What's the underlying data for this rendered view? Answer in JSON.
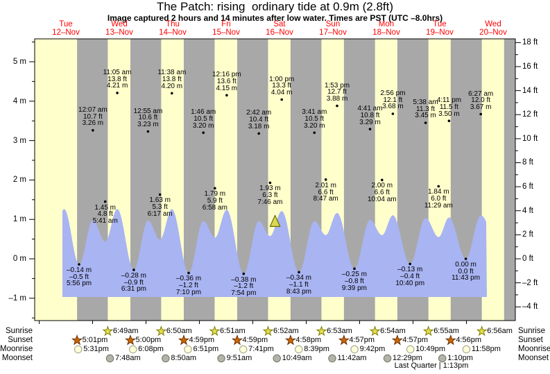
{
  "title": "The Patch: rising  ordinary tide at 0.9m (2.8ft)",
  "subtitle": "Image captured 2 hours and 14 minutes after low water. Times are PST (UTC –8.0hrs)",
  "days": [
    {
      "name": "Tue",
      "date": "12–Nov"
    },
    {
      "name": "Wed",
      "date": "13–Nov"
    },
    {
      "name": "Thu",
      "date": "14–Nov"
    },
    {
      "name": "Fri",
      "date": "15–Nov"
    },
    {
      "name": "Sat",
      "date": "16–Nov"
    },
    {
      "name": "Sun",
      "date": "17–Nov"
    },
    {
      "name": "Mon",
      "date": "18–Nov"
    },
    {
      "name": "Tue",
      "date": "19–Nov"
    },
    {
      "name": "Wed",
      "date": "20–Nov"
    }
  ],
  "y_axis_left": {
    "unit": "m",
    "ticks": [
      5,
      4,
      3,
      2,
      1,
      0,
      -1
    ]
  },
  "y_axis_right": {
    "unit": "ft",
    "ticks": [
      18,
      16,
      14,
      12,
      10,
      8,
      6,
      4,
      2,
      0,
      -2,
      -4
    ]
  },
  "chart_data": {
    "type": "area",
    "title": "The Patch: rising  ordinary tide at 0.9m (2.8ft)",
    "ylabel_left": "meters",
    "ylabel_right": "feet",
    "ylim_m": [
      -1.6,
      5.6
    ],
    "x_range": "Tue 12–Nov through Wed 20–Nov (PST)",
    "legend": "yellow = daytime, gray = nighttime, blue = tide curve",
    "tide_events": [
      {
        "day": "Tue 12–Nov",
        "d": 0,
        "kind": "low",
        "time": "5:56 pm",
        "height_m": -0.14,
        "height_ft": -0.5
      },
      {
        "day": "Wed 13–Nov",
        "d": 1,
        "kind": "high",
        "time": "12:07 am",
        "height_m": 3.26,
        "height_ft": 10.7
      },
      {
        "day": "Wed 13–Nov",
        "d": 1,
        "kind": "low",
        "time": "5:41 am",
        "height_m": 1.45,
        "height_ft": 4.8
      },
      {
        "day": "Wed 13–Nov",
        "d": 1,
        "kind": "high",
        "time": "11:05 am",
        "height_m": 4.21,
        "height_ft": 13.8
      },
      {
        "day": "Wed 13–Nov",
        "d": 1,
        "kind": "low",
        "time": "6:31 pm",
        "height_m": -0.28,
        "height_ft": -0.9
      },
      {
        "day": "Thu 14–Nov",
        "d": 2,
        "kind": "high",
        "time": "12:55 am",
        "height_m": 3.23,
        "height_ft": 10.6
      },
      {
        "day": "Thu 14–Nov",
        "d": 2,
        "kind": "low",
        "time": "6:17 am",
        "height_m": 1.63,
        "height_ft": 5.3
      },
      {
        "day": "Thu 14–Nov",
        "d": 2,
        "kind": "high",
        "time": "11:38 am",
        "height_m": 4.2,
        "height_ft": 13.8
      },
      {
        "day": "Thu 14–Nov",
        "d": 2,
        "kind": "low",
        "time": "7:10 pm",
        "height_m": -0.36,
        "height_ft": -1.2
      },
      {
        "day": "Fri 15–Nov",
        "d": 3,
        "kind": "high",
        "time": "1:46 am",
        "height_m": 3.2,
        "height_ft": 10.5
      },
      {
        "day": "Fri 15–Nov",
        "d": 3,
        "kind": "low",
        "time": "6:58 am",
        "height_m": 1.79,
        "height_ft": 5.9
      },
      {
        "day": "Fri 15–Nov",
        "d": 3,
        "kind": "high",
        "time": "12:16 pm",
        "height_m": 4.15,
        "height_ft": 13.6
      },
      {
        "day": "Fri 15–Nov",
        "d": 3,
        "kind": "low",
        "time": "7:54 pm",
        "height_m": -0.38,
        "height_ft": -1.2
      },
      {
        "day": "Sat 16–Nov",
        "d": 4,
        "kind": "high",
        "time": "2:42 am",
        "height_m": 3.18,
        "height_ft": 10.4
      },
      {
        "day": "Sat 16–Nov",
        "d": 4,
        "kind": "low",
        "time": "7:46 am",
        "height_m": 1.93,
        "height_ft": 6.3
      },
      {
        "day": "Sat 16–Nov",
        "d": 4,
        "kind": "high",
        "time": "1:00 pm",
        "height_m": 4.04,
        "height_ft": 13.3
      },
      {
        "day": "Sat 16–Nov",
        "d": 4,
        "kind": "low",
        "time": "8:43 pm",
        "height_m": -0.34,
        "height_ft": -1.1
      },
      {
        "day": "Sun 17–Nov",
        "d": 5,
        "kind": "high",
        "time": "3:41 am",
        "height_m": 3.2,
        "height_ft": 10.5
      },
      {
        "day": "Sun 17–Nov",
        "d": 5,
        "kind": "low",
        "time": "8:47 am",
        "height_m": 2.01,
        "height_ft": 6.6
      },
      {
        "day": "Sun 17–Nov",
        "d": 5,
        "kind": "high",
        "time": "1:53 pm",
        "height_m": 3.88,
        "height_ft": 12.7
      },
      {
        "day": "Sun 17–Nov",
        "d": 5,
        "kind": "low",
        "time": "9:39 pm",
        "height_m": -0.25,
        "height_ft": -0.8
      },
      {
        "day": "Mon 18–Nov",
        "d": 6,
        "kind": "high",
        "time": "4:41 am",
        "height_m": 3.29,
        "height_ft": 10.8
      },
      {
        "day": "Mon 18–Nov",
        "d": 6,
        "kind": "low",
        "time": "10:04 am",
        "height_m": 2.0,
        "height_ft": 6.6
      },
      {
        "day": "Mon 18–Nov",
        "d": 6,
        "kind": "high",
        "time": "2:56 pm",
        "height_m": 3.68,
        "height_ft": 12.1
      },
      {
        "day": "Mon 18–Nov",
        "d": 6,
        "kind": "low",
        "time": "10:40 pm",
        "height_m": -0.13,
        "height_ft": -0.4
      },
      {
        "day": "Tue 19–Nov",
        "d": 7,
        "kind": "high",
        "time": "5:38 am",
        "height_m": 3.45,
        "height_ft": 11.3
      },
      {
        "day": "Tue 19–Nov",
        "d": 7,
        "kind": "low",
        "time": "11:29 am",
        "height_m": 1.84,
        "height_ft": 6.0
      },
      {
        "day": "Tue 19–Nov",
        "d": 7,
        "kind": "high",
        "time": "4:11 pm",
        "height_m": 3.5,
        "height_ft": 11.5
      },
      {
        "day": "Tue 19–Nov",
        "d": 7,
        "kind": "low",
        "time": "11:43 pm",
        "height_m": 0.0,
        "height_ft": 0.0
      },
      {
        "day": "Wed 20–Nov",
        "d": 8,
        "kind": "high",
        "time": "6:27 am",
        "height_m": 3.67,
        "height_ft": 12.0
      }
    ],
    "now_marker": {
      "height_m": 0.9,
      "height_ft": 2.8,
      "d": 4.417
    },
    "curve_window_days": [
      0.435,
      8.383
    ]
  },
  "astro": {
    "rows": [
      {
        "label": "Sunrise",
        "icon": "sunrise-star-icon",
        "entries": [
          {
            "d": 1,
            "time": "6:49am"
          },
          {
            "d": 2,
            "time": "6:50am"
          },
          {
            "d": 3,
            "time": "6:51am"
          },
          {
            "d": 4,
            "time": "6:52am"
          },
          {
            "d": 5,
            "time": "6:53am"
          },
          {
            "d": 6,
            "time": "6:54am"
          },
          {
            "d": 7,
            "time": "6:55am"
          },
          {
            "d": 8,
            "time": "6:56am"
          }
        ]
      },
      {
        "label": "Sunset",
        "icon": "sunset-star-icon",
        "entries": [
          {
            "d": 0,
            "time": "5:01pm"
          },
          {
            "d": 1,
            "time": "5:00pm"
          },
          {
            "d": 2,
            "time": "4:59pm"
          },
          {
            "d": 3,
            "time": "4:59pm"
          },
          {
            "d": 4,
            "time": "4:58pm"
          },
          {
            "d": 5,
            "time": "4:57pm"
          },
          {
            "d": 6,
            "time": "4:57pm"
          },
          {
            "d": 7,
            "time": "4:56pm"
          }
        ]
      },
      {
        "label": "Moonrise",
        "icon": "moonrise-circle-icon",
        "entries": [
          {
            "d": 0,
            "time": "5:31pm"
          },
          {
            "d": 1,
            "time": "6:08pm"
          },
          {
            "d": 2,
            "time": "6:51pm"
          },
          {
            "d": 3,
            "time": "7:41pm"
          },
          {
            "d": 4,
            "time": "8:39pm"
          },
          {
            "d": 5,
            "time": "9:42pm"
          },
          {
            "d": 6,
            "time": "10:49pm"
          },
          {
            "d": 7,
            "time": "11:58pm"
          }
        ]
      },
      {
        "label": "Moonset",
        "icon": "moonset-circle-icon",
        "entries": [
          {
            "d": 1,
            "time": "7:48am"
          },
          {
            "d": 2,
            "time": "8:50am"
          },
          {
            "d": 3,
            "time": "9:51am"
          },
          {
            "d": 4,
            "time": "10:49am"
          },
          {
            "d": 5,
            "time": "11:42am"
          },
          {
            "d": 6,
            "time": "12:29pm"
          },
          {
            "d": 7,
            "time": "1:10pm"
          }
        ]
      }
    ],
    "footnote": "Last Quarter | 1:13pm"
  },
  "colors": {
    "day_band": "#ffffcc",
    "night_band": "#a8a8a8",
    "tide_fill": "#a9b4f2",
    "date_label": "#ff0000",
    "sunrise_star": "#e6e050",
    "sunrise_star_stroke": "#7a7a00",
    "sunset_star": "#c96a00",
    "sunset_star_stroke": "#6e2c00",
    "moonrise_circle": "#ffffd9",
    "moonrise_circle_stroke": "#9a9a85",
    "moonset_circle": "#b3b3a9",
    "moonset_circle_stroke": "#6f6f63",
    "marker_triangle": "#d9d952",
    "marker_triangle_stroke": "#6b6b00"
  }
}
